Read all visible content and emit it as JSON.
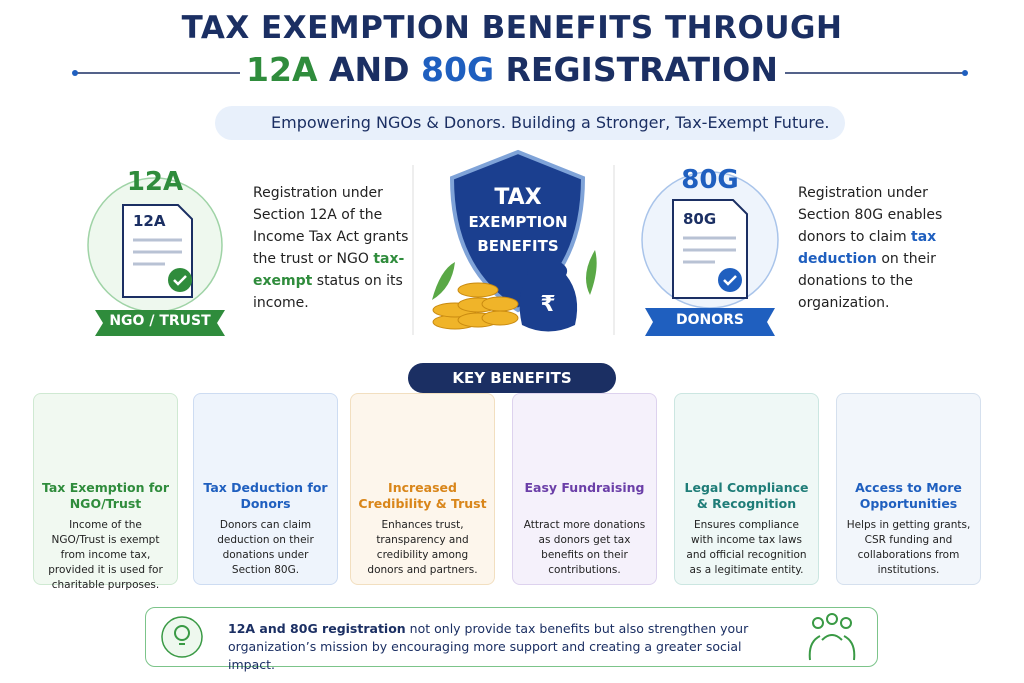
{
  "header": {
    "title_line1": "TAX EXEMPTION BENEFITS THROUGH",
    "title_line2": [
      "12A",
      " AND ",
      "80G",
      " REGISTRATION"
    ],
    "subtitle": "Empowering NGOs & Donors. Building a Stronger, Tax-Exempt Future."
  },
  "left": {
    "heading": "12A",
    "doc_label": "12A",
    "ribbon": "NGO / TRUST",
    "description": [
      "Registration under Section 12A of the Income Tax Act grants the trust or NGO ",
      "tax-exempt",
      " status on its income."
    ]
  },
  "center": {
    "shield_lines": [
      "TAX",
      "EXEMPTION",
      "BENEFITS"
    ],
    "currency": "₹"
  },
  "right": {
    "heading": "80G",
    "doc_label": "80G",
    "ribbon": "DONORS",
    "description": [
      "Registration under Section 80G enables donors to claim ",
      "tax deduction",
      " on their donations to the organization."
    ]
  },
  "benefits": {
    "heading": "KEY BENEFITS",
    "cards": [
      {
        "title": "Tax Exemption for NGO/Trust",
        "text": "Income of the NGO/Trust is exempt from income tax, provided it is used for charitable purposes."
      },
      {
        "title": "Tax Deduction for Donors",
        "text": "Donors can claim deduction on their donations under Section 80G."
      },
      {
        "title": "Increased Credibility & Trust",
        "text": "Enhances trust, transparency and credibility among donors and partners."
      },
      {
        "title": "Easy Fundraising",
        "text": "Attract more donations as donors get tax benefits on their contributions."
      },
      {
        "title": "Legal Compliance & Recognition",
        "text": "Ensures compliance with income tax laws and official recognition as a legitimate entity."
      },
      {
        "title": "Access to More Opportunities",
        "text": "Helps in getting grants, CSR funding and collaborations from institutions."
      }
    ]
  },
  "footer": {
    "text": [
      "12A and 80G registration",
      " not only provide tax benefits but also strengthen your organization’s mission by encouraging more support and creating a greater social impact."
    ]
  }
}
